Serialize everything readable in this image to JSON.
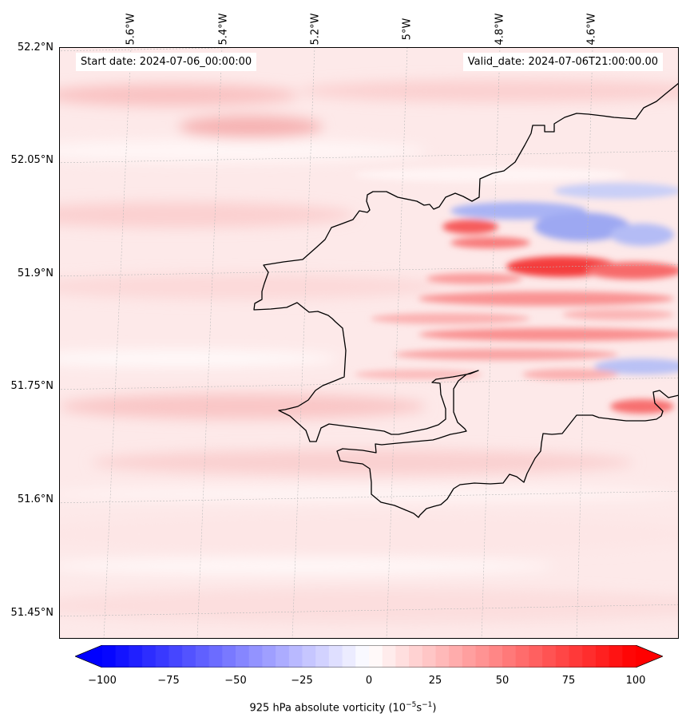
{
  "map": {
    "start_date": "Start date: 2024-07-06_00:00:00",
    "valid_date": "Valid_date: 2024-07-06T21:00:00.00",
    "lat_labels": [
      "52.2°N",
      "52.05°N",
      "51.9°N",
      "51.75°N",
      "51.6°N",
      "51.45°N"
    ],
    "lon_labels": [
      "5.6°W",
      "5.4°W",
      "5.2°W",
      "5°W",
      "4.8°W",
      "4.6°W"
    ],
    "colors": {
      "negative": "#0000ff",
      "positive": "#ff0000",
      "neutral": "#ffffff",
      "coastline": "#000000"
    }
  },
  "colorbar": {
    "ticks": [
      "−100",
      "−75",
      "−50",
      "−25",
      "0",
      "25",
      "50",
      "75",
      "100"
    ],
    "label_prefix": "925 hPa absolute vorticity (10",
    "label_exp1": "−5",
    "label_mid": "s",
    "label_exp2": "−1",
    "label_suffix": ")",
    "vmin": -100,
    "vmax": 100
  }
}
